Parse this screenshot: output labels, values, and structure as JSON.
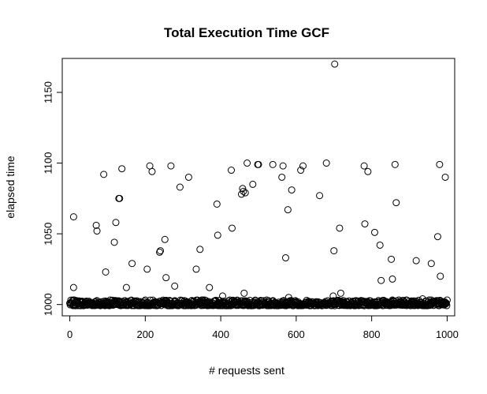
{
  "chart_data": {
    "type": "scatter",
    "title": "Total Execution Time GCF",
    "xlabel": "# requests sent",
    "ylabel": "elapsed time",
    "xlim": [
      -20,
      1020
    ],
    "ylim": [
      992,
      1174
    ],
    "xticks": [
      0,
      200,
      400,
      600,
      800,
      1000
    ],
    "yticks": [
      1000,
      1050,
      1100,
      1150
    ],
    "grid": false,
    "marker": "open-circle",
    "outliers": [
      {
        "x": 10,
        "y": 1062
      },
      {
        "x": 10,
        "y": 1012
      },
      {
        "x": 70,
        "y": 1056
      },
      {
        "x": 72,
        "y": 1052
      },
      {
        "x": 90,
        "y": 1092
      },
      {
        "x": 95,
        "y": 1023
      },
      {
        "x": 118,
        "y": 1044
      },
      {
        "x": 122,
        "y": 1058
      },
      {
        "x": 130,
        "y": 1075
      },
      {
        "x": 132,
        "y": 1075
      },
      {
        "x": 138,
        "y": 1096
      },
      {
        "x": 150,
        "y": 1012
      },
      {
        "x": 165,
        "y": 1029
      },
      {
        "x": 205,
        "y": 1025
      },
      {
        "x": 212,
        "y": 1098
      },
      {
        "x": 218,
        "y": 1094
      },
      {
        "x": 238,
        "y": 1037
      },
      {
        "x": 240,
        "y": 1038
      },
      {
        "x": 252,
        "y": 1046
      },
      {
        "x": 255,
        "y": 1019
      },
      {
        "x": 268,
        "y": 1098
      },
      {
        "x": 278,
        "y": 1013
      },
      {
        "x": 292,
        "y": 1083
      },
      {
        "x": 315,
        "y": 1090
      },
      {
        "x": 335,
        "y": 1025
      },
      {
        "x": 345,
        "y": 1039
      },
      {
        "x": 370,
        "y": 1012
      },
      {
        "x": 390,
        "y": 1071
      },
      {
        "x": 392,
        "y": 1049
      },
      {
        "x": 405,
        "y": 1006
      },
      {
        "x": 428,
        "y": 1095
      },
      {
        "x": 430,
        "y": 1054
      },
      {
        "x": 455,
        "y": 1078
      },
      {
        "x": 458,
        "y": 1082
      },
      {
        "x": 460,
        "y": 1080
      },
      {
        "x": 462,
        "y": 1008
      },
      {
        "x": 465,
        "y": 1079
      },
      {
        "x": 470,
        "y": 1100
      },
      {
        "x": 485,
        "y": 1085
      },
      {
        "x": 498,
        "y": 1099
      },
      {
        "x": 500,
        "y": 1099
      },
      {
        "x": 538,
        "y": 1099
      },
      {
        "x": 562,
        "y": 1090
      },
      {
        "x": 565,
        "y": 1098
      },
      {
        "x": 572,
        "y": 1033
      },
      {
        "x": 578,
        "y": 1067
      },
      {
        "x": 580,
        "y": 1005
      },
      {
        "x": 588,
        "y": 1081
      },
      {
        "x": 612,
        "y": 1095
      },
      {
        "x": 618,
        "y": 1098
      },
      {
        "x": 662,
        "y": 1077
      },
      {
        "x": 680,
        "y": 1100
      },
      {
        "x": 698,
        "y": 1006
      },
      {
        "x": 700,
        "y": 1038
      },
      {
        "x": 702,
        "y": 1170
      },
      {
        "x": 715,
        "y": 1054
      },
      {
        "x": 718,
        "y": 1008
      },
      {
        "x": 780,
        "y": 1098
      },
      {
        "x": 782,
        "y": 1057
      },
      {
        "x": 790,
        "y": 1094
      },
      {
        "x": 808,
        "y": 1051
      },
      {
        "x": 822,
        "y": 1042
      },
      {
        "x": 825,
        "y": 1017
      },
      {
        "x": 852,
        "y": 1032
      },
      {
        "x": 855,
        "y": 1018
      },
      {
        "x": 862,
        "y": 1099
      },
      {
        "x": 865,
        "y": 1072
      },
      {
        "x": 918,
        "y": 1031
      },
      {
        "x": 935,
        "y": 1004
      },
      {
        "x": 958,
        "y": 1029
      },
      {
        "x": 975,
        "y": 1048
      },
      {
        "x": 980,
        "y": 1099
      },
      {
        "x": 982,
        "y": 1020
      },
      {
        "x": 995,
        "y": 1090
      }
    ],
    "baseline": {
      "n": 1000,
      "x_start": 0,
      "x_end": 1000,
      "y_min": 999.2,
      "y_max": 1003.2,
      "seed": 7
    }
  }
}
